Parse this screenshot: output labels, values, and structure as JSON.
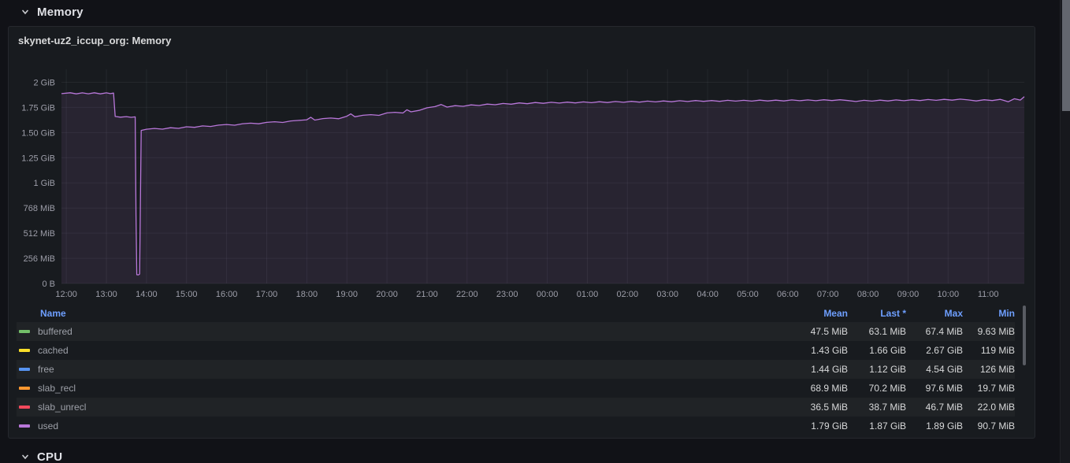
{
  "sections": {
    "memory": "Memory",
    "cpu": "CPU"
  },
  "panel": {
    "title": "skynet-uz2_iccup_org: Memory"
  },
  "chart_data": {
    "type": "line",
    "title": "skynet-uz2_iccup_org: Memory",
    "x_unit": "time (HH:MM)",
    "y_unit": "bytes (IEC)",
    "grid": true,
    "legend_position": "bottom-table",
    "xlim_hours": [
      -0.12,
      23.9
    ],
    "ylim_mib": [
      0,
      2180
    ],
    "x_ticks": [
      {
        "hour": 0,
        "label": "12:00"
      },
      {
        "hour": 1,
        "label": "13:00"
      },
      {
        "hour": 2,
        "label": "14:00"
      },
      {
        "hour": 3,
        "label": "15:00"
      },
      {
        "hour": 4,
        "label": "16:00"
      },
      {
        "hour": 5,
        "label": "17:00"
      },
      {
        "hour": 6,
        "label": "18:00"
      },
      {
        "hour": 7,
        "label": "19:00"
      },
      {
        "hour": 8,
        "label": "20:00"
      },
      {
        "hour": 9,
        "label": "21:00"
      },
      {
        "hour": 10,
        "label": "22:00"
      },
      {
        "hour": 11,
        "label": "23:00"
      },
      {
        "hour": 12,
        "label": "00:00"
      },
      {
        "hour": 13,
        "label": "01:00"
      },
      {
        "hour": 14,
        "label": "02:00"
      },
      {
        "hour": 15,
        "label": "03:00"
      },
      {
        "hour": 16,
        "label": "04:00"
      },
      {
        "hour": 17,
        "label": "05:00"
      },
      {
        "hour": 18,
        "label": "06:00"
      },
      {
        "hour": 19,
        "label": "07:00"
      },
      {
        "hour": 20,
        "label": "08:00"
      },
      {
        "hour": 21,
        "label": "09:00"
      },
      {
        "hour": 22,
        "label": "10:00"
      },
      {
        "hour": 23,
        "label": "11:00"
      }
    ],
    "y_ticks": [
      {
        "mib": 2048,
        "label": "2 GiB"
      },
      {
        "mib": 1792,
        "label": "1.75 GiB"
      },
      {
        "mib": 1536,
        "label": "1.50 GiB"
      },
      {
        "mib": 1280,
        "label": "1.25 GiB"
      },
      {
        "mib": 1024,
        "label": "1 GiB"
      },
      {
        "mib": 768,
        "label": "768 MiB"
      },
      {
        "mib": 512,
        "label": "512 MiB"
      },
      {
        "mib": 256,
        "label": "256 MiB"
      },
      {
        "mib": 0,
        "label": "0 B"
      }
    ],
    "series": [
      {
        "name": "used",
        "color": "#b877d9",
        "fill_opacity": 0.1,
        "points_hour_mib": [
          [
            -0.12,
            1932
          ],
          [
            0.1,
            1941
          ],
          [
            0.25,
            1930
          ],
          [
            0.4,
            1940
          ],
          [
            0.55,
            1931
          ],
          [
            0.7,
            1941
          ],
          [
            0.85,
            1930
          ],
          [
            1.0,
            1940
          ],
          [
            1.1,
            1932
          ],
          [
            1.18,
            1938
          ],
          [
            1.22,
            1700
          ],
          [
            1.35,
            1693
          ],
          [
            1.5,
            1698
          ],
          [
            1.62,
            1691
          ],
          [
            1.72,
            1696
          ],
          [
            1.74,
            700
          ],
          [
            1.76,
            90
          ],
          [
            1.8,
            87
          ],
          [
            1.83,
            96
          ],
          [
            1.87,
            1558
          ],
          [
            2.0,
            1570
          ],
          [
            2.2,
            1578
          ],
          [
            2.4,
            1571
          ],
          [
            2.6,
            1585
          ],
          [
            2.8,
            1579
          ],
          [
            3.0,
            1595
          ],
          [
            3.2,
            1589
          ],
          [
            3.4,
            1604
          ],
          [
            3.6,
            1598
          ],
          [
            3.8,
            1612
          ],
          [
            4.0,
            1618
          ],
          [
            4.2,
            1611
          ],
          [
            4.4,
            1626
          ],
          [
            4.6,
            1632
          ],
          [
            4.8,
            1625
          ],
          [
            5.0,
            1640
          ],
          [
            5.2,
            1646
          ],
          [
            5.4,
            1639
          ],
          [
            5.6,
            1654
          ],
          [
            5.8,
            1660
          ],
          [
            6.0,
            1666
          ],
          [
            6.1,
            1692
          ],
          [
            6.2,
            1663
          ],
          [
            6.4,
            1678
          ],
          [
            6.6,
            1684
          ],
          [
            6.8,
            1677
          ],
          [
            7.0,
            1702
          ],
          [
            7.1,
            1726
          ],
          [
            7.2,
            1697
          ],
          [
            7.4,
            1712
          ],
          [
            7.6,
            1718
          ],
          [
            7.8,
            1711
          ],
          [
            8.0,
            1736
          ],
          [
            8.2,
            1742
          ],
          [
            8.4,
            1735
          ],
          [
            8.5,
            1768
          ],
          [
            8.6,
            1747
          ],
          [
            8.8,
            1762
          ],
          [
            9.0,
            1788
          ],
          [
            9.2,
            1800
          ],
          [
            9.35,
            1822
          ],
          [
            9.5,
            1795
          ],
          [
            9.7,
            1810
          ],
          [
            9.9,
            1803
          ],
          [
            10.1,
            1818
          ],
          [
            10.3,
            1811
          ],
          [
            10.5,
            1826
          ],
          [
            10.7,
            1819
          ],
          [
            10.9,
            1832
          ],
          [
            11.1,
            1825
          ],
          [
            11.3,
            1838
          ],
          [
            11.5,
            1830
          ],
          [
            11.7,
            1842
          ],
          [
            11.9,
            1834
          ],
          [
            12.1,
            1844
          ],
          [
            12.3,
            1836
          ],
          [
            12.5,
            1846
          ],
          [
            12.7,
            1838
          ],
          [
            12.9,
            1848
          ],
          [
            13.1,
            1840
          ],
          [
            13.3,
            1850
          ],
          [
            13.5,
            1842
          ],
          [
            13.7,
            1852
          ],
          [
            13.9,
            1844
          ],
          [
            14.1,
            1854
          ],
          [
            14.3,
            1846
          ],
          [
            14.5,
            1856
          ],
          [
            14.7,
            1848
          ],
          [
            14.9,
            1858
          ],
          [
            15.1,
            1850
          ],
          [
            15.3,
            1860
          ],
          [
            15.5,
            1852
          ],
          [
            15.7,
            1862
          ],
          [
            15.9,
            1854
          ],
          [
            16.1,
            1862
          ],
          [
            16.3,
            1854
          ],
          [
            16.5,
            1864
          ],
          [
            16.7,
            1856
          ],
          [
            16.9,
            1864
          ],
          [
            17.1,
            1856
          ],
          [
            17.3,
            1866
          ],
          [
            17.5,
            1858
          ],
          [
            17.7,
            1866
          ],
          [
            17.9,
            1858
          ],
          [
            18.1,
            1868
          ],
          [
            18.3,
            1860
          ],
          [
            18.5,
            1868
          ],
          [
            18.7,
            1860
          ],
          [
            18.9,
            1870
          ],
          [
            19.1,
            1862
          ],
          [
            19.3,
            1870
          ],
          [
            19.5,
            1862
          ],
          [
            19.7,
            1852
          ],
          [
            19.9,
            1864
          ],
          [
            20.1,
            1856
          ],
          [
            20.3,
            1866
          ],
          [
            20.5,
            1858
          ],
          [
            20.7,
            1868
          ],
          [
            20.9,
            1860
          ],
          [
            21.1,
            1870
          ],
          [
            21.3,
            1862
          ],
          [
            21.5,
            1872
          ],
          [
            21.7,
            1864
          ],
          [
            21.9,
            1874
          ],
          [
            22.1,
            1866
          ],
          [
            22.3,
            1876
          ],
          [
            22.5,
            1868
          ],
          [
            22.7,
            1858
          ],
          [
            22.9,
            1870
          ],
          [
            23.1,
            1862
          ],
          [
            23.3,
            1874
          ],
          [
            23.5,
            1850
          ],
          [
            23.65,
            1880
          ],
          [
            23.8,
            1867
          ],
          [
            23.9,
            1902
          ]
        ]
      }
    ]
  },
  "legend": {
    "columns": [
      "Name",
      "Mean",
      "Last *",
      "Max",
      "Min"
    ],
    "rows": [
      {
        "name": "buffered",
        "color": "#73bf69",
        "mean": "47.5 MiB",
        "last": "63.1 MiB",
        "max": "67.4 MiB",
        "min": "9.63 MiB"
      },
      {
        "name": "cached",
        "color": "#fade2a",
        "mean": "1.43 GiB",
        "last": "1.66 GiB",
        "max": "2.67 GiB",
        "min": "119 MiB"
      },
      {
        "name": "free",
        "color": "#5794f2",
        "mean": "1.44 GiB",
        "last": "1.12 GiB",
        "max": "4.54 GiB",
        "min": "126 MiB"
      },
      {
        "name": "slab_recl",
        "color": "#ff9830",
        "mean": "68.9 MiB",
        "last": "70.2 MiB",
        "max": "97.6 MiB",
        "min": "19.7 MiB"
      },
      {
        "name": "slab_unrecl",
        "color": "#f2495c",
        "mean": "36.5 MiB",
        "last": "38.7 MiB",
        "max": "46.7 MiB",
        "min": "22.0 MiB"
      },
      {
        "name": "used",
        "color": "#b877d9",
        "mean": "1.79 GiB",
        "last": "1.87 GiB",
        "max": "1.89 GiB",
        "min": "90.7 MiB"
      }
    ]
  },
  "colors": {
    "page_bg": "#111217",
    "panel_bg": "#181b1f",
    "legend_header_text": "#6e9fff",
    "grid_line": "rgba(204,204,220,0.07)"
  }
}
